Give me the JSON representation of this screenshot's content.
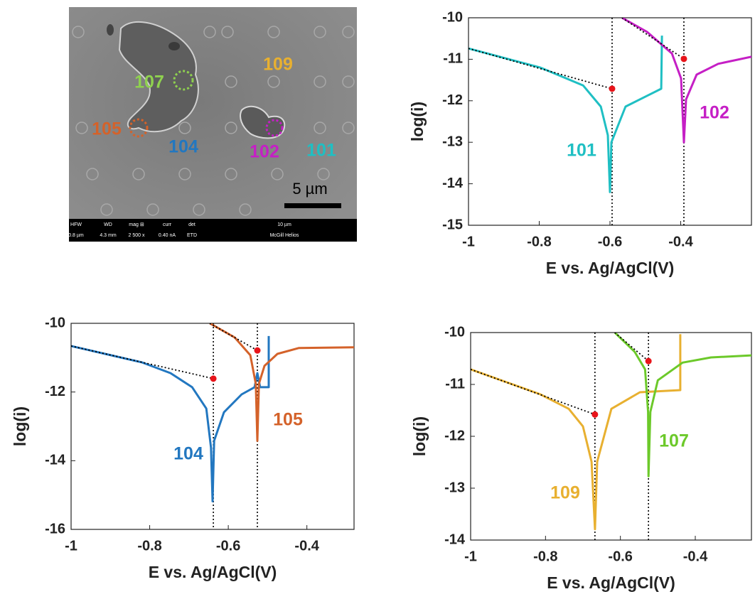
{
  "sem_image": {
    "labels": [
      {
        "text": "107",
        "color": "#8fd14f"
      },
      {
        "text": "109",
        "color": "#e8b030"
      },
      {
        "text": "105",
        "color": "#d4622a"
      },
      {
        "text": "104",
        "color": "#2277c0"
      },
      {
        "text": "102",
        "color": "#c51fc5"
      },
      {
        "text": "101",
        "color": "#1fbfc3"
      }
    ],
    "scale_bar": "5 µm",
    "info_headers": [
      "HFW",
      "WD",
      "mag ⊞",
      "curr",
      "det",
      "10 µm"
    ],
    "info_values": [
      "0.8 µm",
      "4.3 mm",
      "2 500 x",
      "0.40 nA",
      "ETD",
      "McGill Helios"
    ]
  },
  "chart_data": [
    {
      "type": "line",
      "xlabel": "E vs. Ag/AgCl(V)",
      "ylabel": "log(i)",
      "xlim": [
        -1,
        -0.2
      ],
      "ylim": [
        -15,
        -10
      ],
      "xticks": [
        -1,
        -0.8,
        -0.6,
        -0.4
      ],
      "yticks": [
        -10,
        -11,
        -12,
        -13,
        -14,
        -15
      ],
      "series": [
        {
          "name": "101",
          "color": "#1fbfc3",
          "x": [
            -1,
            -0.797,
            -0.676,
            -0.626,
            -0.606,
            -0.6,
            -0.596,
            -0.556,
            -0.495,
            -0.455,
            -0.453
          ],
          "values": [
            -10.74,
            -11.2,
            -11.63,
            -12.14,
            -12.83,
            -14.2,
            -13.0,
            -12.14,
            -11.88,
            -11.71,
            -10.43
          ]
        },
        {
          "name": "102",
          "color": "#c51fc5",
          "x": [
            -0.566,
            -0.495,
            -0.425,
            -0.399,
            -0.391,
            -0.385,
            -0.355,
            -0.294,
            -0.2
          ],
          "values": [
            -10,
            -10.34,
            -10.86,
            -11.46,
            -13.0,
            -11.97,
            -11.37,
            -11.11,
            -10.94
          ]
        }
      ],
      "fit_lines": [
        {
          "x": [
            -1,
            -0.594
          ],
          "values": [
            -10.74,
            -11.71
          ]
        },
        {
          "x": [
            -0.566,
            -0.391
          ],
          "values": [
            -10,
            -10.99
          ]
        }
      ],
      "corrosion_points": {
        "color": "#e8141a",
        "x": [
          -0.594,
          -0.391
        ],
        "values": [
          -11.71,
          -10.99
        ]
      },
      "ecorr_lines": [
        -0.594,
        -0.391
      ]
    },
    {
      "type": "line",
      "xlabel": "E vs. Ag/AgCl(V)",
      "ylabel": "log(i)",
      "xlim": [
        -1,
        -0.28
      ],
      "ylim": [
        -16,
        -10
      ],
      "xticks": [
        -1,
        -0.8,
        -0.6,
        -0.4
      ],
      "yticks": [
        -10,
        -12,
        -14,
        -16
      ],
      "series": [
        {
          "name": "104",
          "color": "#2277c0",
          "x": [
            -1,
            -0.819,
            -0.747,
            -0.692,
            -0.656,
            -0.644,
            -0.64,
            -0.636,
            -0.611,
            -0.566,
            -0.533,
            -0.526,
            -0.519,
            -0.497,
            -0.497
          ],
          "values": [
            -10.66,
            -11.14,
            -11.45,
            -11.86,
            -12.48,
            -13.62,
            -15.18,
            -13.42,
            -12.59,
            -12.07,
            -11.86,
            -11.45,
            -11.86,
            -11.86,
            -10.37
          ]
        },
        {
          "name": "105",
          "color": "#d4622a",
          "x": [
            -0.647,
            -0.584,
            -0.544,
            -0.53,
            -0.526,
            -0.522,
            -0.508,
            -0.475,
            -0.421,
            -0.28
          ],
          "values": [
            -10,
            -10.41,
            -10.93,
            -11.76,
            -13.42,
            -11.76,
            -11.24,
            -10.89,
            -10.72,
            -10.7
          ]
        }
      ],
      "fit_lines": [
        {
          "x": [
            -1,
            -0.638
          ],
          "values": [
            -10.66,
            -11.61
          ]
        },
        {
          "x": [
            -0.647,
            -0.526
          ],
          "values": [
            -10,
            -10.79
          ]
        }
      ],
      "corrosion_points": {
        "color": "#e8141a",
        "x": [
          -0.638,
          -0.526
        ],
        "values": [
          -11.61,
          -10.79
        ]
      },
      "ecorr_lines": [
        -0.638,
        -0.526
      ]
    },
    {
      "type": "line",
      "xlabel": "E vs. Ag/AgCl(V)",
      "ylabel": "log(i)",
      "xlim": [
        -1,
        -0.25
      ],
      "ylim": [
        -14,
        -10
      ],
      "xticks": [
        -1,
        -0.8,
        -0.6,
        -0.4
      ],
      "yticks": [
        -10,
        -11,
        -12,
        -13,
        -14
      ],
      "series": [
        {
          "name": "109",
          "color": "#e8b030",
          "x": [
            -1,
            -0.814,
            -0.738,
            -0.7,
            -0.677,
            -0.668,
            -0.662,
            -0.624,
            -0.548,
            -0.44,
            -0.44
          ],
          "values": [
            -10.71,
            -11.19,
            -11.47,
            -11.81,
            -12.49,
            -13.79,
            -12.49,
            -11.47,
            -11.15,
            -11.11,
            -10.03
          ]
        },
        {
          "name": "107",
          "color": "#6cc92a",
          "x": [
            -0.615,
            -0.562,
            -0.534,
            -0.526,
            -0.525,
            -0.52,
            -0.5,
            -0.434,
            -0.358,
            -0.25
          ],
          "values": [
            -10,
            -10.37,
            -10.71,
            -11.53,
            -12.77,
            -11.53,
            -10.92,
            -10.58,
            -10.48,
            -10.44
          ]
        }
      ],
      "fit_lines": [
        {
          "x": [
            -1,
            -0.668
          ],
          "values": [
            -10.71,
            -11.58
          ]
        },
        {
          "x": [
            -0.615,
            -0.525
          ],
          "values": [
            -10,
            -10.55
          ]
        }
      ],
      "corrosion_points": {
        "color": "#e8141a",
        "x": [
          -0.668,
          -0.525
        ],
        "values": [
          -11.58,
          -10.55
        ]
      },
      "ecorr_lines": [
        -0.668,
        -0.525
      ]
    }
  ]
}
